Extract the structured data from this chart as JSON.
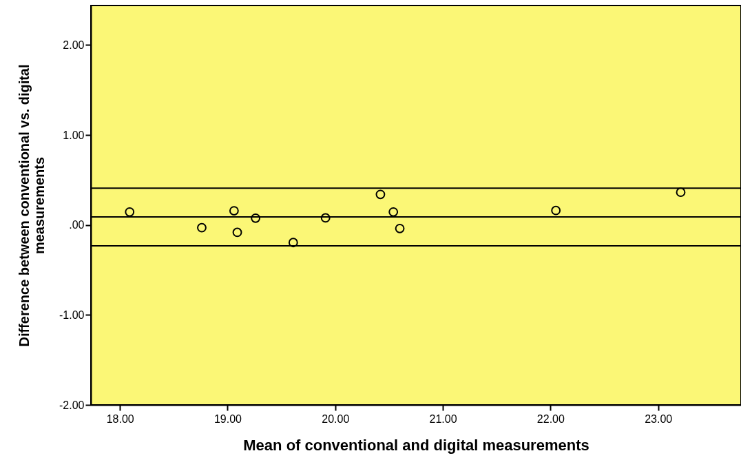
{
  "chart_data": {
    "type": "scatter",
    "xlabel": "Mean of conventional and digital measurements",
    "ylabel": "Difference between conventional vs. digital measurements",
    "x": [
      18.09,
      18.76,
      19.06,
      19.09,
      19.26,
      19.61,
      19.91,
      20.42,
      20.54,
      20.6,
      22.05,
      23.21
    ],
    "series": [
      {
        "color": "#000000",
        "values": [
          0.145,
          -0.03,
          0.158,
          -0.082,
          0.076,
          -0.195,
          0.079,
          0.34,
          0.145,
          -0.039,
          0.161,
          0.364
        ]
      }
    ],
    "xlim": [
      17.73,
      23.77
    ],
    "xticks": [
      {
        "value": 18,
        "label": "18.00"
      },
      {
        "value": 19,
        "label": "19.00"
      },
      {
        "value": 20,
        "label": "20.00"
      },
      {
        "value": 21,
        "label": "21.00"
      },
      {
        "value": 22,
        "label": "22.00"
      },
      {
        "value": 23,
        "label": "23.00"
      }
    ],
    "ylim": [
      -2,
      2.44
    ],
    "yticks": [
      {
        "value": -2,
        "label": "-2.00"
      },
      {
        "value": -1,
        "label": "-1.00"
      },
      {
        "value": 0,
        "label": ".00"
      },
      {
        "value": 1,
        "label": "1.00"
      },
      {
        "value": 2,
        "label": "2.00"
      }
    ],
    "ref_lines": [
      {
        "axis": "y",
        "value": 0.41,
        "color": "#000000"
      },
      {
        "axis": "y",
        "value": 0.089,
        "color": "#000000"
      },
      {
        "axis": "y",
        "value": -0.232,
        "color": "#000000"
      }
    ],
    "grid": false,
    "marker": "circle"
  }
}
